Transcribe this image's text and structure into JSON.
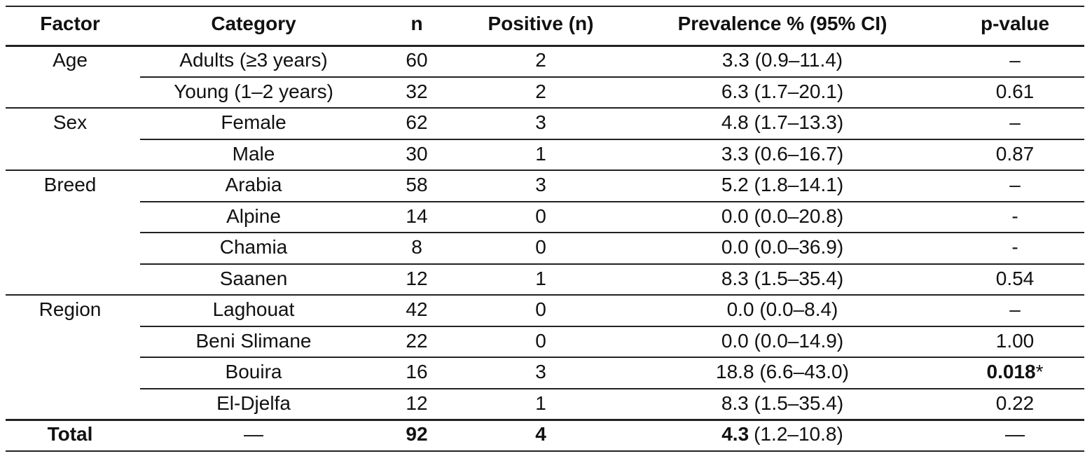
{
  "header": [
    "Factor",
    "Category",
    "n",
    "Positive (n)",
    "Prevalence % (95% CI)",
    "p-value"
  ],
  "groups": [
    {
      "factor": "Age",
      "rows": [
        [
          "Adults (≥3 years)",
          60,
          2,
          "3.3 (0.9–11.4)",
          "–"
        ],
        [
          "Young (1–2 years)",
          32,
          2,
          "6.3 (1.7–20.1)",
          "0.61"
        ]
      ]
    },
    {
      "factor": "Sex",
      "rows": [
        [
          "Female",
          62,
          3,
          "4.8 (1.7–13.3)",
          "–"
        ],
        [
          "Male",
          30,
          1,
          "3.3 (0.6–16.7)",
          "0.87"
        ]
      ]
    },
    {
      "factor": "Breed",
      "rows": [
        [
          "Arabia",
          58,
          3,
          "5.2 (1.8–14.1)",
          "–"
        ],
        [
          "Alpine",
          14,
          0,
          "0.0 (0.0–20.8)",
          "-"
        ],
        [
          "Chamia",
          8,
          0,
          "0.0 (0.0–36.9)",
          "-"
        ],
        [
          "Saanen",
          12,
          1,
          "8.3 (1.5–35.4)",
          "0.54"
        ]
      ]
    },
    {
      "factor": "Region",
      "rows": [
        [
          "Laghouat",
          42,
          0,
          "0.0 (0.0–8.4)",
          "–"
        ],
        [
          "Beni Slimane",
          22,
          0,
          "0.0 (0.0–14.9)",
          "1.00"
        ],
        [
          "Bouira",
          16,
          3,
          "18.8 (6.6–43.0)",
          {
            "parts": [
              {
                "text": "0.018",
                "bold": true
              },
              {
                "text": "*"
              }
            ]
          }
        ],
        [
          "El-Djelfa",
          12,
          1,
          "8.3 (1.5–35.4)",
          "0.22"
        ]
      ]
    }
  ],
  "total": {
    "factor": {
      "text": "Total",
      "bold": true
    },
    "cells": [
      "—",
      {
        "text": "92",
        "bold": true
      },
      {
        "text": "4",
        "bold": true
      },
      {
        "parts": [
          {
            "text": "4.3",
            "bold": true
          },
          {
            "text": "(1.2–10.8)"
          }
        ]
      },
      "—"
    ]
  }
}
